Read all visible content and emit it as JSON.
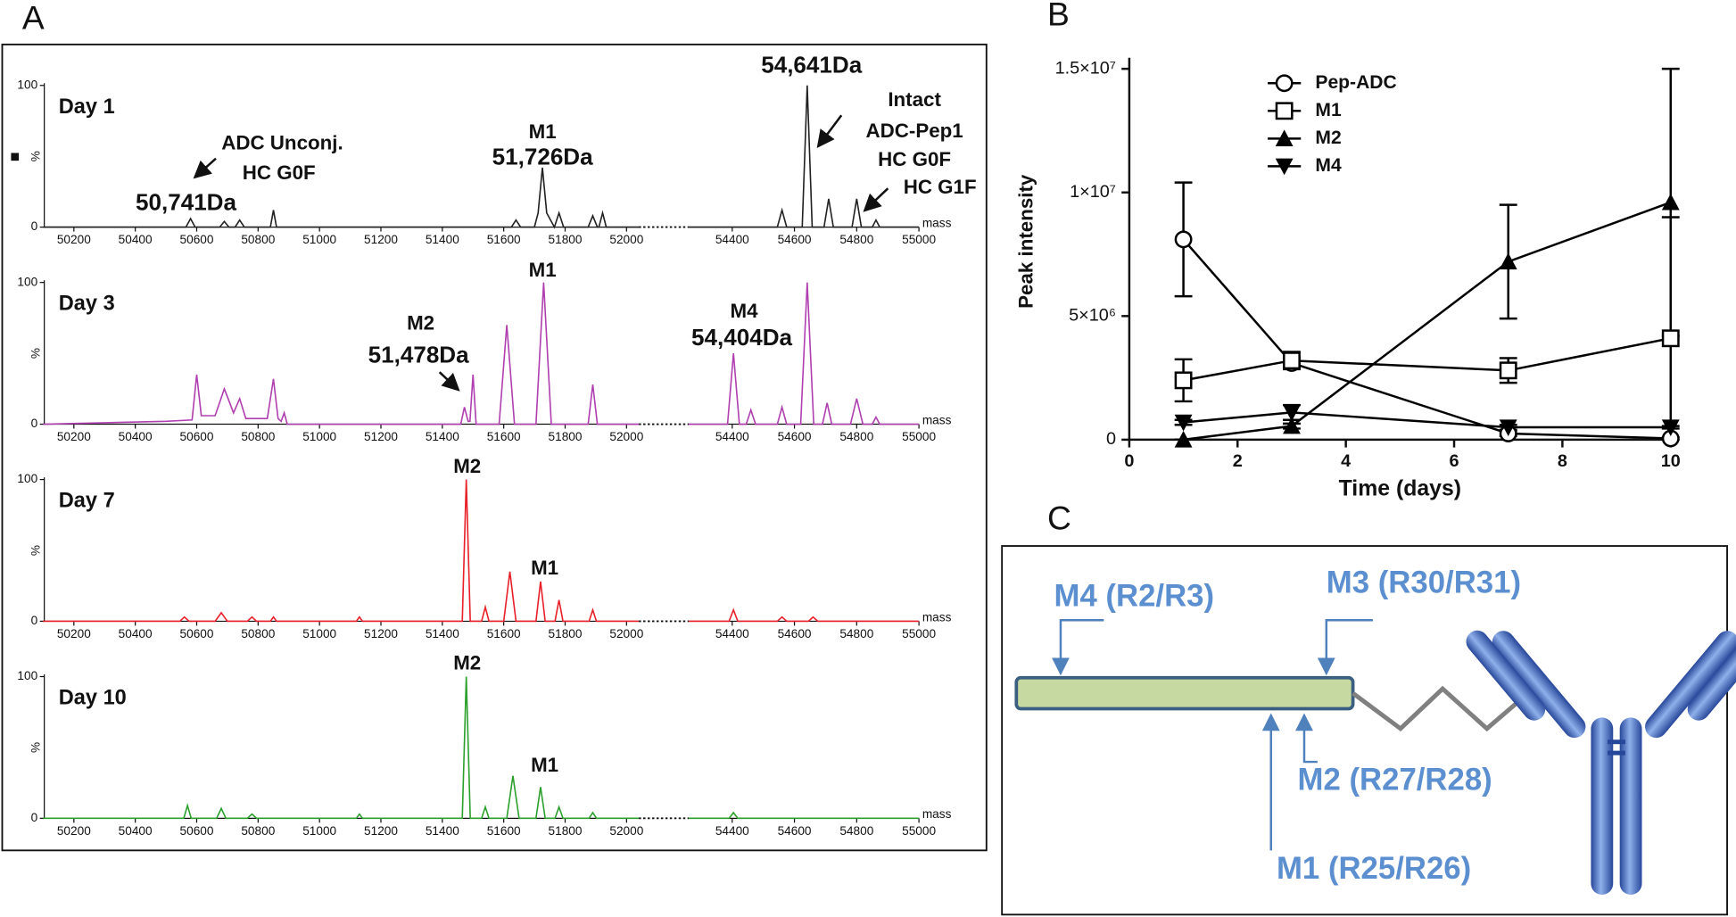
{
  "panel_labels": [
    "A",
    "B",
    "C"
  ],
  "chart_data": [
    {
      "type": "spectrum",
      "title": "Day 1",
      "color": "#222222",
      "ylim": [
        0,
        100
      ],
      "yticks": [
        0,
        100
      ],
      "ylabel": "%",
      "xlabel": "mass",
      "annotations": [
        "ADC Unconj.",
        "HC G0F",
        "50,741Da",
        "M1",
        "51,726Da",
        "54,641Da",
        "Intact",
        "ADC-Pep1",
        "HC G0F",
        "HC G1F"
      ],
      "segments": [
        {
          "xlim": [
            50100,
            52040
          ],
          "xticks": [
            50200,
            50400,
            50600,
            50800,
            51000,
            51200,
            51400,
            51600,
            51800,
            52000
          ],
          "x": [
            50100,
            50565,
            50580,
            50595,
            50675,
            50690,
            50705,
            50725,
            50740,
            50755,
            50840,
            50850,
            50860,
            51625,
            51640,
            51655,
            51700,
            51712,
            51726,
            51740,
            51765,
            51780,
            51795,
            51875,
            51890,
            51905,
            51910,
            51922,
            51934,
            52040
          ],
          "values": [
            0,
            0,
            6,
            0,
            0,
            4,
            0,
            0,
            5,
            0,
            0,
            12,
            0,
            0,
            5,
            0,
            0,
            10,
            42,
            10,
            0,
            10,
            0,
            0,
            8,
            0,
            0,
            10,
            0,
            0
          ]
        },
        {
          "xlim": [
            54260,
            55000
          ],
          "xticks": [
            54400,
            54600,
            54800,
            55000
          ],
          "x": [
            54260,
            54545,
            54560,
            54575,
            54625,
            54641,
            54657,
            54695,
            54710,
            54725,
            54785,
            54800,
            54815,
            54850,
            54862,
            54874,
            55000
          ],
          "values": [
            0,
            0,
            12,
            0,
            0,
            100,
            0,
            0,
            20,
            0,
            0,
            20,
            0,
            0,
            5,
            0,
            0
          ]
        }
      ]
    },
    {
      "type": "spectrum",
      "title": "Day 3",
      "color": "#b040b0",
      "ylim": [
        0,
        100
      ],
      "yticks": [
        0,
        100
      ],
      "ylabel": "%",
      "xlabel": "mass",
      "annotations": [
        "M2",
        "51,478Da",
        "M1",
        "M4",
        "54,404Da"
      ],
      "segments": [
        {
          "xlim": [
            50100,
            52040
          ],
          "xticks": [
            50200,
            50400,
            50600,
            50800,
            51000,
            51200,
            51400,
            51600,
            51800,
            52000
          ],
          "x": [
            50100,
            50500,
            50585,
            50600,
            50615,
            50660,
            50690,
            50720,
            50740,
            50760,
            50830,
            50850,
            50865,
            50875,
            50885,
            50895,
            51460,
            51472,
            51484,
            51490,
            51500,
            51510,
            51585,
            51610,
            51635,
            51705,
            51730,
            51755,
            51875,
            51890,
            51905,
            52040
          ],
          "values": [
            0,
            2,
            3,
            35,
            6,
            6,
            25,
            8,
            18,
            4,
            4,
            32,
            4,
            2,
            8,
            0,
            0,
            12,
            2,
            2,
            35,
            0,
            0,
            70,
            0,
            0,
            100,
            0,
            0,
            28,
            0,
            0
          ]
        },
        {
          "xlim": [
            54260,
            55000
          ],
          "xticks": [
            54400,
            54600,
            54800,
            55000
          ],
          "x": [
            54260,
            54385,
            54404,
            54423,
            54445,
            54460,
            54475,
            54545,
            54560,
            54575,
            54620,
            54641,
            54662,
            54690,
            54705,
            54720,
            54780,
            54800,
            54820,
            54850,
            54862,
            54874,
            55000
          ],
          "values": [
            0,
            0,
            50,
            0,
            0,
            10,
            0,
            0,
            12,
            0,
            0,
            100,
            0,
            0,
            15,
            0,
            0,
            18,
            0,
            0,
            5,
            0,
            0
          ]
        }
      ]
    },
    {
      "type": "spectrum",
      "title": "Day 7",
      "color": "#e8202a",
      "ylim": [
        0,
        100
      ],
      "yticks": [
        0,
        100
      ],
      "ylabel": "%",
      "xlabel": "mass",
      "annotations": [
        "M2",
        "M1"
      ],
      "segments": [
        {
          "xlim": [
            50100,
            52040
          ],
          "xticks": [
            50200,
            50400,
            50600,
            50800,
            51000,
            51200,
            51400,
            51600,
            51800,
            52000
          ],
          "x": [
            50100,
            50545,
            50560,
            50575,
            50660,
            50680,
            50700,
            50765,
            50780,
            50795,
            50840,
            50850,
            50860,
            51120,
            51130,
            51140,
            51465,
            51478,
            51491,
            51528,
            51540,
            51552,
            51600,
            51620,
            51640,
            51705,
            51720,
            51735,
            51767,
            51780,
            51793,
            51878,
            51890,
            51902,
            52040
          ],
          "values": [
            0,
            0,
            3,
            0,
            0,
            6,
            0,
            0,
            3,
            0,
            0,
            3,
            0,
            0,
            3,
            0,
            0,
            100,
            0,
            0,
            10,
            0,
            0,
            35,
            0,
            0,
            28,
            0,
            0,
            15,
            0,
            0,
            8,
            0,
            0
          ]
        },
        {
          "xlim": [
            54260,
            55000
          ],
          "xticks": [
            54400,
            54600,
            54800,
            55000
          ],
          "x": [
            54260,
            54390,
            54404,
            54418,
            54545,
            54560,
            54575,
            54645,
            54660,
            54675,
            55000
          ],
          "values": [
            0,
            0,
            8,
            0,
            0,
            3,
            0,
            0,
            3,
            0,
            0
          ]
        }
      ]
    },
    {
      "type": "spectrum",
      "title": "Day 10",
      "color": "#2ca02c",
      "ylim": [
        0,
        100
      ],
      "yticks": [
        0,
        100
      ],
      "ylabel": "%",
      "xlabel": "mass",
      "annotations": [
        "M2",
        "M1"
      ],
      "segments": [
        {
          "xlim": [
            50100,
            52040
          ],
          "xticks": [
            50200,
            50400,
            50600,
            50800,
            51000,
            51200,
            51400,
            51600,
            51800,
            52000
          ],
          "x": [
            50100,
            50558,
            50570,
            50582,
            50665,
            50680,
            50695,
            50765,
            50780,
            50795,
            51120,
            51130,
            51140,
            51465,
            51478,
            51491,
            51528,
            51540,
            51552,
            51610,
            51630,
            51650,
            51705,
            51720,
            51735,
            51767,
            51780,
            51793,
            51878,
            51890,
            51902,
            52040
          ],
          "values": [
            0,
            0,
            9,
            0,
            0,
            7,
            0,
            0,
            3,
            0,
            0,
            3,
            0,
            0,
            100,
            0,
            0,
            8,
            0,
            0,
            30,
            0,
            0,
            22,
            0,
            0,
            8,
            0,
            0,
            4,
            0,
            0
          ]
        },
        {
          "xlim": [
            54260,
            55000
          ],
          "xticks": [
            54400,
            54600,
            54800,
            55000
          ],
          "x": [
            54260,
            54390,
            54404,
            54418,
            55000
          ],
          "values": [
            0,
            0,
            4,
            0,
            0
          ]
        }
      ]
    },
    {
      "type": "line",
      "xlabel": "Time (days)",
      "ylabel": "Peak intensity",
      "legend": "top-left",
      "xlim": [
        0,
        10
      ],
      "ylim": [
        0,
        15000000
      ],
      "xticks": [
        0,
        2,
        4,
        6,
        8,
        10
      ],
      "yticks": [
        0,
        {
          "value": 5000000,
          "label": "5×10⁶"
        },
        {
          "value": 10000000,
          "label": "1×10⁷"
        },
        {
          "value": 15000000,
          "label": "1.5×10⁷"
        }
      ],
      "x": [
        1,
        3,
        7,
        10
      ],
      "series": [
        {
          "name": "Pep-ADC",
          "marker": "circle-open",
          "color": "#000000",
          "values": [
            8100000,
            3100000,
            250000,
            50000
          ],
          "errors": [
            2300000,
            200000,
            100000,
            50000
          ]
        },
        {
          "name": "M1",
          "marker": "square-open",
          "color": "#000000",
          "values": [
            2400000,
            3200000,
            2800000,
            4100000
          ],
          "errors": [
            850000,
            350000,
            500000,
            4900000
          ]
        },
        {
          "name": "M2",
          "marker": "triangle-up",
          "color": "#000000",
          "values": [
            0,
            550000,
            7200000,
            9600000
          ],
          "errors": [
            0,
            100000,
            2300000,
            5400000
          ]
        },
        {
          "name": "M4",
          "marker": "triangle-down",
          "color": "#000000",
          "values": [
            700000,
            1100000,
            500000,
            500000
          ],
          "errors": [
            100000,
            300000,
            100000,
            50000
          ]
        }
      ]
    }
  ],
  "diagram": {
    "labels": [
      "M4 (R2/R3)",
      "M3 (R30/R31)",
      "M2 (R27/R28)",
      "M1 (R25/R26)"
    ]
  }
}
